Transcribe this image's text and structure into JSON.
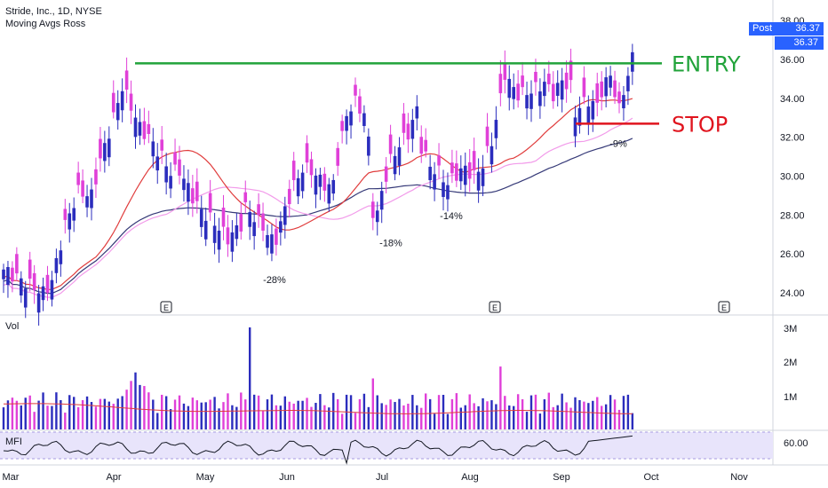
{
  "header": {
    "symbol_line": "Stride, Inc., 1D, NYSE",
    "indicator_line": "Moving Avgs Ross"
  },
  "badges": {
    "post_label": "Post",
    "post_value": "36.37",
    "last_price": "36.37"
  },
  "volume_label": "Vol",
  "mfi_label": "MFI",
  "annotations": {
    "entry": "ENTRY",
    "stop": "STOP"
  },
  "colors": {
    "up": "#2b2dbd",
    "down": "#e040d8",
    "entry": "#21a33a",
    "stop": "#e0141e",
    "ma_red": "#e03c3c",
    "ma_pink": "#f29bea",
    "ma_navy": "#363a78",
    "accent": "#2962ff"
  },
  "chart_data": {
    "type": "candlestick",
    "price_axis": {
      "ylim": [
        23,
        38.6
      ],
      "ticks": [
        "38.00",
        "36.00",
        "34.00",
        "32.00",
        "30.00",
        "28.00",
        "26.00",
        "24.00"
      ]
    },
    "volume_axis": {
      "ticks": [
        "3M",
        "2M",
        "1M"
      ]
    },
    "mfi_axis": {
      "ticks": [
        "60.00"
      ]
    },
    "x_labels": [
      "Mar",
      "Apr",
      "May",
      "Jun",
      "Jul",
      "Aug",
      "Sep",
      "Oct",
      "Nov"
    ],
    "earnings_markers": [
      "E",
      "E",
      "E"
    ],
    "levels": {
      "entry": 35.8,
      "stop": 32.7
    },
    "pullbacks": [
      {
        "label": "-28%",
        "value": 25.5
      },
      {
        "label": "-18%",
        "value": 27.4
      },
      {
        "label": "-14%",
        "value": 28.8
      },
      {
        "label": "-9%",
        "value": 32.5
      }
    ],
    "price_path": [
      [
        0,
        25.2
      ],
      [
        3,
        24.8
      ],
      [
        6,
        24.4
      ],
      [
        9,
        24.0
      ],
      [
        11,
        24.6
      ],
      [
        14,
        27.5
      ],
      [
        17,
        29.2
      ],
      [
        20,
        29.0
      ],
      [
        22,
        30.8
      ],
      [
        25,
        33.0
      ],
      [
        27,
        34.6
      ],
      [
        29,
        33.6
      ],
      [
        31,
        32.5
      ],
      [
        33,
        32.0
      ],
      [
        36,
        31.0
      ],
      [
        38,
        30.2
      ],
      [
        40,
        30.3
      ],
      [
        42,
        29.4
      ],
      [
        44,
        28.5
      ],
      [
        46,
        28.0
      ],
      [
        48,
        27.6
      ],
      [
        51,
        26.8
      ],
      [
        54,
        27.5
      ],
      [
        55,
        28.4
      ],
      [
        57,
        27.9
      ],
      [
        59,
        27.4
      ],
      [
        61,
        26.7
      ],
      [
        62,
        26.8
      ],
      [
        64,
        28.3
      ],
      [
        66,
        29.5
      ],
      [
        68,
        30.4
      ],
      [
        70,
        30.3
      ],
      [
        72,
        29.8
      ],
      [
        74,
        29.4
      ],
      [
        75,
        29.7
      ],
      [
        77,
        32.0
      ],
      [
        78,
        33.2
      ],
      [
        80,
        33.8
      ],
      [
        82,
        33.2
      ],
      [
        83,
        31.8
      ],
      [
        84,
        28.2
      ],
      [
        85,
        28.0
      ],
      [
        86,
        29.2
      ],
      [
        88,
        30.8
      ],
      [
        90,
        31.6
      ],
      [
        92,
        32.2
      ],
      [
        94,
        33.4
      ],
      [
        95,
        31.5
      ],
      [
        97,
        30.5
      ],
      [
        99,
        30.2
      ],
      [
        101,
        29.6
      ],
      [
        103,
        30.1
      ],
      [
        105,
        30.4
      ],
      [
        107,
        30.0
      ],
      [
        109,
        30.6
      ],
      [
        111,
        31.8
      ],
      [
        113,
        34.0
      ],
      [
        114,
        35.3
      ],
      [
        115,
        34.8
      ],
      [
        117,
        34.2
      ],
      [
        119,
        34.3
      ],
      [
        121,
        34.5
      ],
      [
        123,
        34.8
      ],
      [
        125,
        34.2
      ],
      [
        127,
        34.9
      ],
      [
        129,
        34.6
      ],
      [
        130,
        33.2
      ],
      [
        131,
        33.6
      ],
      [
        133,
        33.9
      ],
      [
        135,
        33.6
      ],
      [
        136,
        34.4
      ],
      [
        138,
        35.2
      ],
      [
        140,
        33.4
      ],
      [
        141,
        34.4
      ],
      [
        142,
        35.2
      ],
      [
        143,
        36.37
      ]
    ]
  }
}
